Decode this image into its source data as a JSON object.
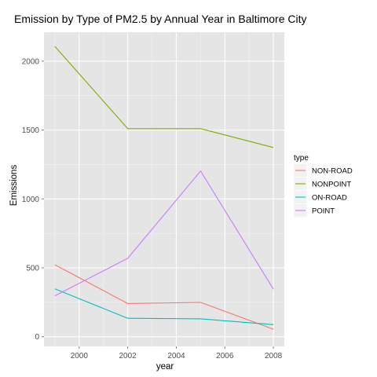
{
  "chart_data": {
    "type": "line",
    "title": "Emission by Type of PM2.5 by Annual Year in Baltimore City",
    "xlabel": "year",
    "ylabel": "Emissions",
    "x": [
      1999,
      2002,
      2005,
      2008
    ],
    "xlim": [
      1998.55,
      2008.45
    ],
    "ylim": [
      -70,
      2210
    ],
    "xticks": [
      2000,
      2002,
      2004,
      2006,
      2008
    ],
    "yticks": [
      0,
      500,
      1000,
      1500,
      2000
    ],
    "x_minor": [
      1999,
      2001,
      2003,
      2005,
      2007
    ],
    "y_minor": [
      250,
      750,
      1250,
      1750
    ],
    "legend_title": "type",
    "legend_position": "right",
    "grid": true,
    "panel_color": "#e5e5e5",
    "grid_color": "#ffffff",
    "series": [
      {
        "name": "NON-ROAD",
        "color": "#F8766D",
        "values": [
          522,
          241,
          249,
          55
        ]
      },
      {
        "name": "NONPOINT",
        "color": "#7CAE00",
        "values": [
          2107,
          1510,
          1510,
          1373
        ]
      },
      {
        "name": "ON-ROAD",
        "color": "#00BFC4",
        "values": [
          347,
          134,
          130,
          88
        ]
      },
      {
        "name": "POINT",
        "color": "#C77CFF",
        "values": [
          297,
          569,
          1202,
          345
        ]
      }
    ]
  }
}
